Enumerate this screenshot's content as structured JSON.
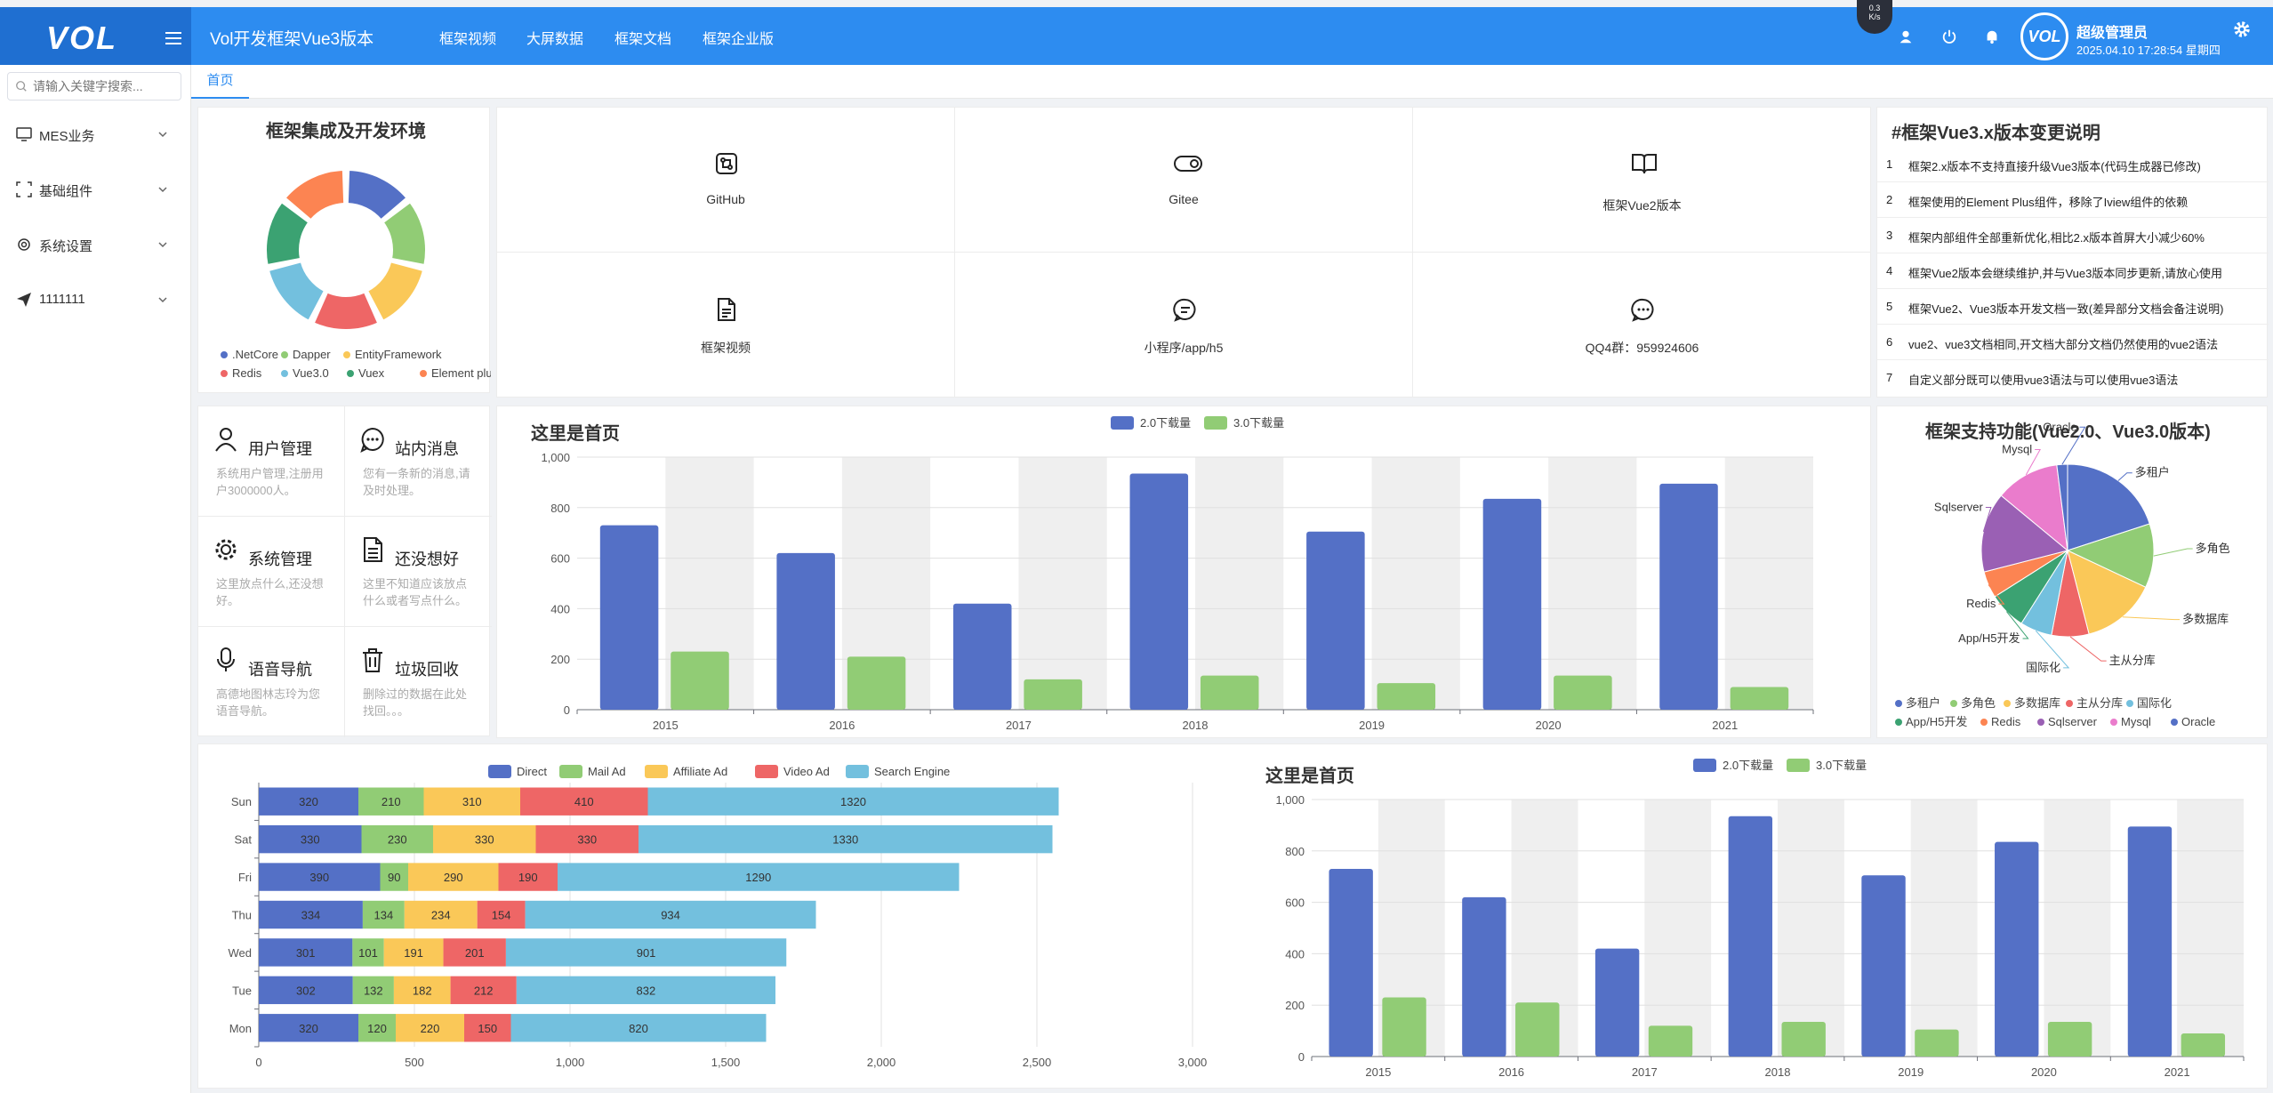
{
  "header": {
    "logo": "VOL",
    "title": "Vol开发框架Vue3版本",
    "nav": [
      "框架视频",
      "大屏数据",
      "框架文档",
      "框架企业版"
    ],
    "net_speed": "0.3",
    "net_unit": "K/s",
    "user_name": "超级管理员",
    "datetime": "2025.04.10 17:28:54 星期四",
    "avatar_text": "VOL"
  },
  "sidebar": {
    "search_placeholder": "请输入关键字搜索...",
    "items": [
      {
        "label": "MES业务",
        "icon": "monitor-icon"
      },
      {
        "label": "基础组件",
        "icon": "scan-icon"
      },
      {
        "label": "系统设置",
        "icon": "gear-icon"
      },
      {
        "label": "1111111",
        "icon": "send-icon"
      }
    ]
  },
  "tabs": {
    "home": "首页"
  },
  "env_card": {
    "title": "框架集成及开发环境",
    "legend": [
      ".NetCore",
      "Dapper",
      "EntityFramework",
      "Redis",
      "Vue3.0",
      "Vuex",
      "Element plus"
    ],
    "colors": [
      "#5470c6",
      "#91cc75",
      "#fac858",
      "#ee6666",
      "#73c0de",
      "#3ba272",
      "#fc8452"
    ]
  },
  "links": [
    {
      "label": "GitHub",
      "icon": "github-icon"
    },
    {
      "label": "Gitee",
      "icon": "gitee-icon"
    },
    {
      "label": "框架Vue2版本",
      "icon": "book-icon"
    },
    {
      "label": "框架视频",
      "icon": "document-icon"
    },
    {
      "label": "小程序/app/h5",
      "icon": "chat-icon"
    },
    {
      "label": "QQ4群：959924606",
      "icon": "message-icon"
    }
  ],
  "changes": {
    "title": "#框架Vue3.x版本变更说明",
    "items": [
      {
        "num": "1",
        "text": "框架2.x版本不支持直接升级Vue3版本(代码生成器已修改)"
      },
      {
        "num": "2",
        "text": "框架使用的Element Plus组件，移除了Iview组件的依赖"
      },
      {
        "num": "3",
        "text": "框架内部组件全部重新优化,相比2.x版本首屏大小减少60%"
      },
      {
        "num": "4",
        "text": "框架Vue2版本会继续维护,并与Vue3版本同步更新,请放心使用"
      },
      {
        "num": "5",
        "text": "框架Vue2、Vue3版本开发文档一致(差异部分文档会备注说明)"
      },
      {
        "num": "6",
        "text": "vue2、vue3文档相同,开文档大部分文档仍然使用的vue2语法"
      },
      {
        "num": "7",
        "text": "自定义部分既可以使用vue3语法与可以使用vue3语法"
      }
    ]
  },
  "quick": [
    {
      "title": "用户管理",
      "desc": "系统用户管理,注册用户3000000人。",
      "icon": "user-icon"
    },
    {
      "title": "站内消息",
      "desc": "您有一条新的消息,请及时处理。",
      "icon": "chat-bubble-icon"
    },
    {
      "title": "系统管理",
      "desc": "这里放点什么,还没想好。",
      "icon": "settings-icon"
    },
    {
      "title": "还没想好",
      "desc": "这里不知道应该放点什么或者写点什么。",
      "icon": "list-document-icon"
    },
    {
      "title": "语音导航",
      "desc": "高德地图林志玲为您语音导航。",
      "icon": "microphone-icon"
    },
    {
      "title": "垃圾回收",
      "desc": "删除过的数据在此处找回。。。",
      "icon": "trash-icon"
    }
  ],
  "support_card": {
    "title": "框架支持功能(Vue2.0、Vue3.0版本)"
  },
  "chart_data": [
    {
      "type": "bar",
      "title": "这里是首页",
      "categories": [
        "2015",
        "2016",
        "2017",
        "2018",
        "2019",
        "2020",
        "2021"
      ],
      "series": [
        {
          "name": "2.0下载量",
          "values": [
            730,
            620,
            420,
            935,
            705,
            835,
            895
          ],
          "color": "#5470c6"
        },
        {
          "name": "3.0下载量",
          "values": [
            230,
            210,
            120,
            135,
            105,
            135,
            90
          ],
          "color": "#91cc75"
        }
      ],
      "yticks": [
        "0",
        "200",
        "400",
        "600",
        "800",
        "1,000"
      ],
      "ylim": [
        0,
        1000
      ],
      "legend": "top-center",
      "grid": true
    },
    {
      "type": "pie",
      "title": "框架支持功能(Vue2.0、Vue3.0版本)",
      "categories": [
        "多租户",
        "多角色",
        "多数据库",
        "主从分库",
        "国际化",
        "App/H5开发",
        "Redis",
        "Sqlserver",
        "Mysql",
        "Oracle"
      ],
      "values": [
        20,
        12,
        14,
        7,
        6,
        7,
        5,
        15,
        12,
        2
      ],
      "colors": [
        "#5470c6",
        "#91cc75",
        "#fac858",
        "#ee6666",
        "#73c0de",
        "#3ba272",
        "#fc8452",
        "#9a60b4",
        "#ea7ccc",
        "#5470c6"
      ],
      "legend": "bottom"
    },
    {
      "type": "bar",
      "title": "",
      "orientation": "horizontal",
      "stacked": true,
      "categories": [
        "Mon",
        "Tue",
        "Wed",
        "Thu",
        "Fri",
        "Sat",
        "Sun"
      ],
      "series": [
        {
          "name": "Direct",
          "values": [
            320,
            302,
            301,
            334,
            390,
            330,
            320
          ],
          "color": "#5470c6"
        },
        {
          "name": "Mail Ad",
          "values": [
            120,
            132,
            101,
            134,
            90,
            230,
            210
          ],
          "color": "#91cc75"
        },
        {
          "name": "Affiliate Ad",
          "values": [
            220,
            182,
            191,
            234,
            290,
            330,
            310
          ],
          "color": "#fac858"
        },
        {
          "name": "Video Ad",
          "values": [
            150,
            212,
            201,
            154,
            190,
            330,
            410
          ],
          "color": "#ee6666"
        },
        {
          "name": "Search Engine",
          "values": [
            820,
            832,
            901,
            934,
            1290,
            1330,
            1320
          ],
          "color": "#73c0de"
        }
      ],
      "xticks": [
        "0",
        "500",
        "1,000",
        "1,500",
        "2,000",
        "2,500",
        "3,000"
      ],
      "xlim": [
        0,
        3000
      ],
      "legend": "top-center",
      "grid": true
    },
    {
      "type": "bar",
      "title": "这里是首页",
      "categories": [
        "2015",
        "2016",
        "2017",
        "2018",
        "2019",
        "2020",
        "2021"
      ],
      "series": [
        {
          "name": "2.0下载量",
          "values": [
            730,
            620,
            420,
            935,
            705,
            835,
            895
          ],
          "color": "#5470c6"
        },
        {
          "name": "3.0下载量",
          "values": [
            230,
            210,
            120,
            135,
            105,
            135,
            90
          ],
          "color": "#91cc75"
        }
      ],
      "yticks": [
        "0",
        "200",
        "400",
        "600",
        "800",
        "1,000"
      ],
      "ylim": [
        0,
        1000
      ],
      "legend": "top-center",
      "grid": true
    }
  ]
}
